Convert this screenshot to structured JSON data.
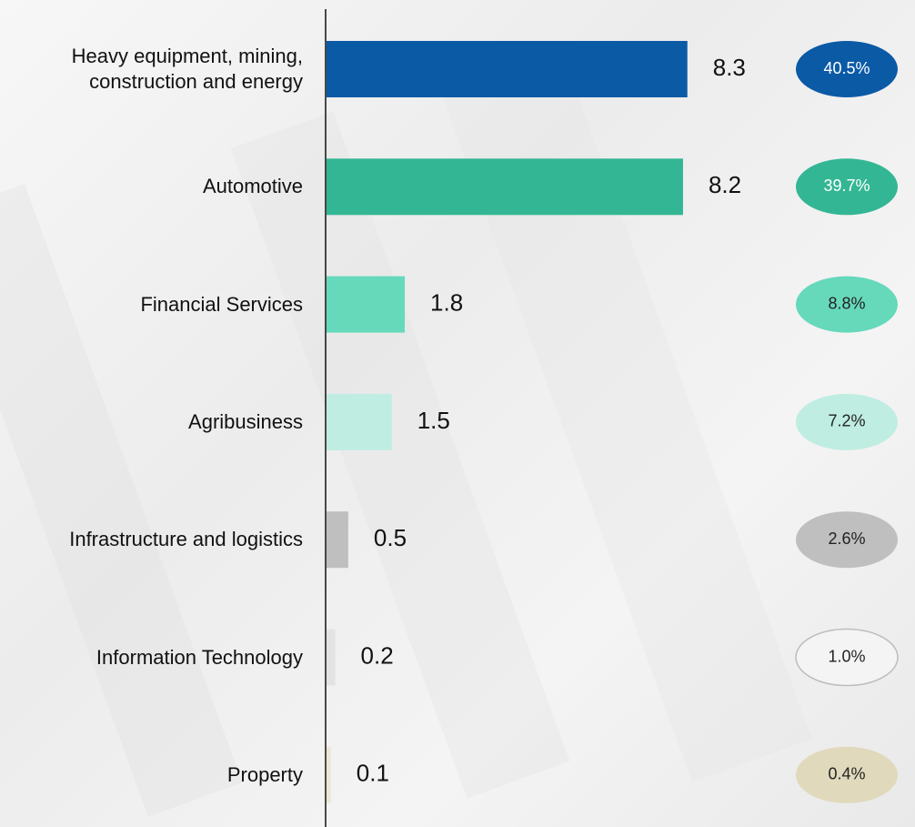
{
  "chart_data": {
    "type": "bar",
    "categories": [
      "Heavy equipment, mining, construction and energy",
      "Automotive",
      "Financial Services",
      "Agribusiness",
      "Infrastructure and logistics",
      "Information Technology",
      "Property"
    ],
    "values": [
      8.3,
      8.2,
      1.8,
      1.5,
      0.5,
      0.2,
      0.1
    ],
    "colors": [
      "#0b5aa6",
      "#33b693",
      "#66d9bb",
      "#bfede1",
      "#bfbfbf",
      "#e3e3e3",
      "#ece7d3"
    ],
    "shares": [
      40.5,
      39.7,
      8.8,
      7.2,
      2.6,
      1.0,
      0.4
    ],
    "share_labels": [
      "40.5%",
      "39.7%",
      "8.8%",
      "7.2%",
      "2.6%",
      "1.0%",
      "0.4%"
    ],
    "share_colors": [
      "#0b5aa6",
      "#33b693",
      "#66d9bb",
      "#bfede1",
      "#bfbfbf",
      "#f4f4f4",
      "#e0d9bb"
    ]
  }
}
